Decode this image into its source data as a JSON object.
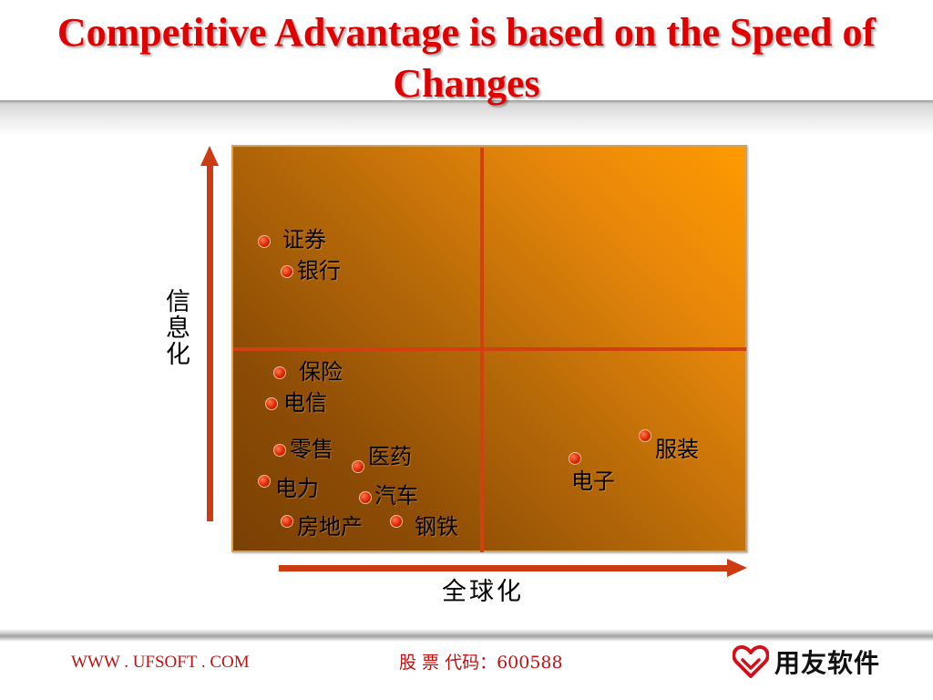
{
  "title": "Competitive Advantage is based on the Speed of Changes",
  "diagram": {
    "y_axis_label": "信息化",
    "x_axis_label": "全球化",
    "colors": {
      "title": "#e00000",
      "axis_arrow": "#cc3b12",
      "quadrant_divider": "#d04010",
      "gradient_light": "#ff9a00",
      "gradient_dark": "#7a4004",
      "dot": "#e02800"
    },
    "items": [
      {
        "label": "证券"
      },
      {
        "label": "银行"
      },
      {
        "label": "保险"
      },
      {
        "label": "电信"
      },
      {
        "label": "零售"
      },
      {
        "label": "医药"
      },
      {
        "label": "电力"
      },
      {
        "label": "汽车"
      },
      {
        "label": "房地产"
      },
      {
        "label": "钢铁"
      },
      {
        "label": "服装"
      },
      {
        "label": "电子"
      }
    ]
  },
  "footer": {
    "website": "WWW . UFSOFT . COM",
    "stock_code": "股 票 代码：600588",
    "logo_text": "用友软件",
    "logo_icon": "heart-icon"
  }
}
